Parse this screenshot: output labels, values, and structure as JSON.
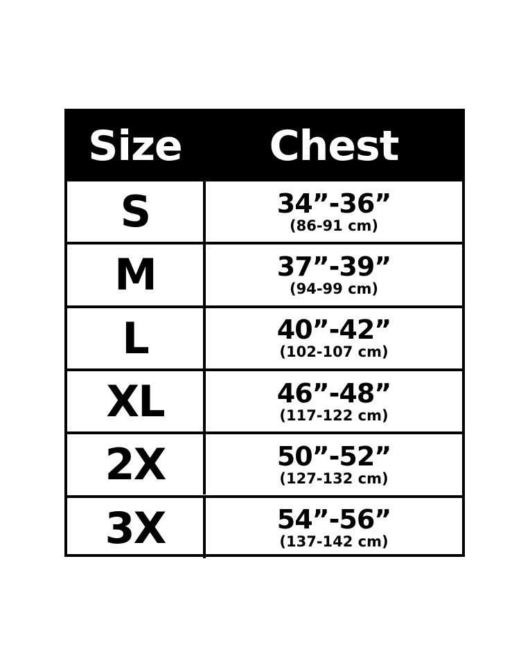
{
  "table": {
    "header": [
      "Size",
      "Chest"
    ],
    "rows": [
      [
        "S",
        "34”-36”",
        "(86-91 cm)"
      ],
      [
        "M",
        "37”-39”",
        "(94-99 cm)"
      ],
      [
        "L",
        "40”-42”",
        "(102-107 cm)"
      ],
      [
        "XL",
        "46”-48”",
        "(117-122 cm)"
      ],
      [
        "2X",
        "50”-52”",
        "(127-132 cm)"
      ],
      [
        "3X",
        "54”-56”",
        "(137-142 cm)"
      ]
    ]
  }
}
